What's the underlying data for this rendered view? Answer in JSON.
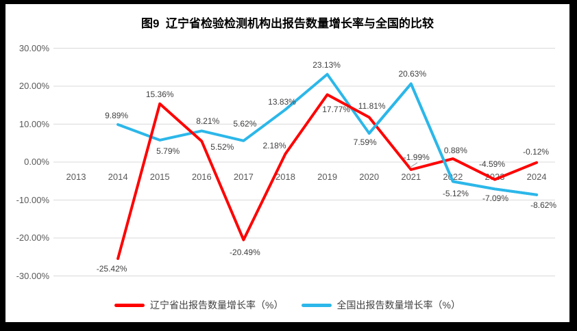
{
  "frame": {
    "border_color": "#000000",
    "background": "#ffffff"
  },
  "chart_data": {
    "type": "line",
    "title": "图9  辽宁省检验检测机构出报告数量增长率与全国的比较",
    "categories": [
      "2013",
      "2014",
      "2015",
      "2016",
      "2017",
      "2018",
      "2019",
      "2020",
      "2021",
      "2022",
      "2023",
      "2024"
    ],
    "series": [
      {
        "name": "辽宁省出报告数量增长率（%）",
        "color": "#fe0000",
        "values": [
          null,
          -25.42,
          15.36,
          5.52,
          -20.49,
          2.18,
          17.77,
          11.81,
          -1.99,
          0.88,
          -4.59,
          -0.12
        ],
        "labels": [
          null,
          "-25.42%",
          "15.36%",
          "5.52%",
          "-20.49%",
          "2.18%",
          "17.77%",
          "11.81%",
          "-1.99%",
          "0.88%",
          "-4.59%",
          "-0.12%"
        ],
        "label_offsets": [
          null,
          [
            -9,
            15
          ],
          [
            0,
            -14
          ],
          [
            30,
            9
          ],
          [
            2,
            18
          ],
          [
            -16,
            -12
          ],
          [
            13,
            22
          ],
          [
            4,
            -16
          ],
          [
            8,
            -18
          ],
          [
            4,
            -12
          ],
          [
            -4,
            -22
          ],
          [
            -1,
            -16
          ]
        ]
      },
      {
        "name": "全国出报告数量增长率（%）",
        "color": "#2cb7e9",
        "values": [
          null,
          9.89,
          5.79,
          8.21,
          5.62,
          13.83,
          23.13,
          7.59,
          20.63,
          -5.12,
          -7.09,
          -8.62
        ],
        "labels": [
          null,
          "9.89%",
          "5.79%",
          "8.21%",
          "5.62%",
          "13.83%",
          "23.13%",
          "7.59%",
          "20.63%",
          "-5.12%",
          "-7.09%",
          "-8.62%"
        ],
        "label_offsets": [
          null,
          [
            -2,
            -13
          ],
          [
            12,
            16
          ],
          [
            9,
            -14
          ],
          [
            2,
            -25
          ],
          [
            -5,
            -11
          ],
          [
            -1,
            -14
          ],
          [
            -6,
            13
          ],
          [
            2,
            -15
          ],
          [
            4,
            18
          ],
          [
            1,
            14
          ],
          [
            10,
            15
          ]
        ]
      }
    ],
    "y_axis": {
      "min": -30,
      "max": 30,
      "step": 10,
      "tick_labels": [
        "30.00%",
        "20.00%",
        "10.00%",
        "0.00%",
        "-10.00%",
        "-20.00%",
        "-30.00%"
      ]
    },
    "grid": true,
    "gridline_color": "#d9d9d9",
    "tick_color": "#595959",
    "data_label_color": "#404040",
    "legend_position": "bottom",
    "annotation_leader_color": "#a6a6a6"
  }
}
